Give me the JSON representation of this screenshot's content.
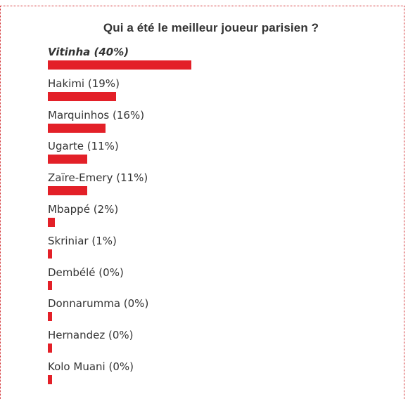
{
  "poll": {
    "title": "Qui a été le meilleur joueur parisien ?",
    "accent_color": "#e32028",
    "options": [
      {
        "label": "Vitinha (40%)",
        "name": "Vitinha",
        "percent": 40,
        "winner": true
      },
      {
        "label": "Hakimi (19%)",
        "name": "Hakimi",
        "percent": 19
      },
      {
        "label": "Marquinhos (16%)",
        "name": "Marquinhos",
        "percent": 16
      },
      {
        "label": "Ugarte (11%)",
        "name": "Ugarte",
        "percent": 11
      },
      {
        "label": "Zaïre-Emery (11%)",
        "name": "Zaïre-Emery",
        "percent": 11
      },
      {
        "label": "Mbappé (2%)",
        "name": "Mbappé",
        "percent": 2
      },
      {
        "label": "Skriniar (1%)",
        "name": "Skriniar",
        "percent": 1
      },
      {
        "label": "Dembélé (0%)",
        "name": "Dembélé",
        "percent": 0
      },
      {
        "label": "Donnarumma (0%)",
        "name": "Donnarumma",
        "percent": 0
      },
      {
        "label": "Hernandez (0%)",
        "name": "Hernandez",
        "percent": 0
      },
      {
        "label": "Kolo Muani (0%)",
        "name": "Kolo Muani",
        "percent": 0
      }
    ]
  }
}
